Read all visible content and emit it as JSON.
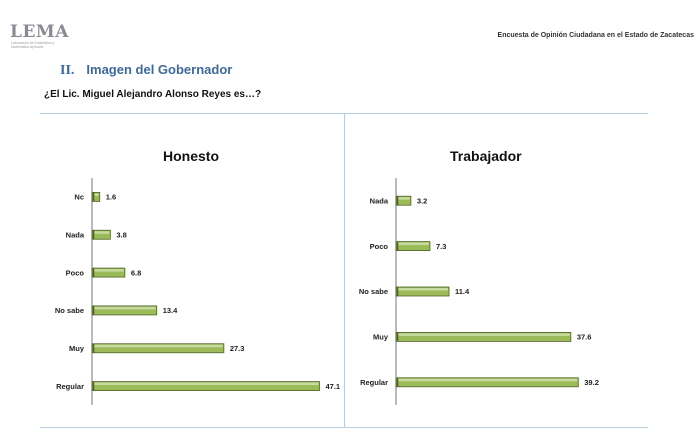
{
  "header": {
    "logo_text": "LEMA",
    "logo_subtitle": "Laboratorio de Estadística y Matemática Aplicada",
    "right_text": "Encuesta de Opinión Ciudadana en el Estado de Zacatecas"
  },
  "section": {
    "number": "II.",
    "title": "Imagen del Gobernador"
  },
  "question": "¿El Lic. Miguel Alejandro Alonso Reyes es…?",
  "colors": {
    "bar_fill": "#9bbb59",
    "bar_edge": "#4f6228",
    "rule": "#b9cde3",
    "section": "#3d6a9e"
  },
  "chart_data": [
    {
      "type": "bar",
      "orientation": "horizontal",
      "title": "Honesto",
      "categories": [
        "Nc",
        "Nada",
        "Poco",
        "No sabe",
        "Muy",
        "Regular"
      ],
      "values": [
        1.6,
        3.8,
        6.8,
        13.4,
        27.3,
        47.1
      ],
      "xlim": [
        0,
        50
      ]
    },
    {
      "type": "bar",
      "orientation": "horizontal",
      "title": "Trabajador",
      "categories": [
        "Nada",
        "Poco",
        "No sabe",
        "Muy",
        "Regular"
      ],
      "values": [
        3.2,
        7.3,
        11.4,
        37.6,
        39.2
      ],
      "xlim": [
        0,
        40
      ]
    }
  ]
}
